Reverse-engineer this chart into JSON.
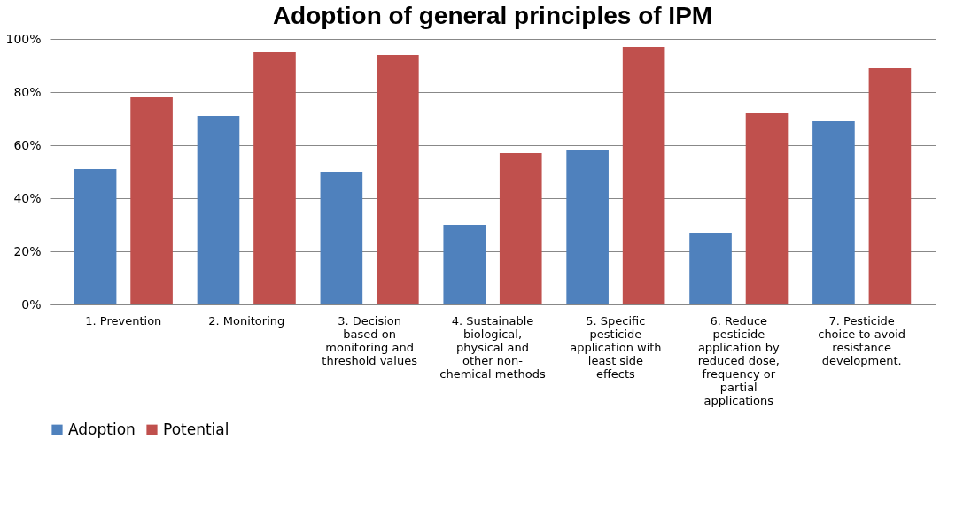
{
  "chart_data": {
    "type": "bar",
    "title": "Adoption of general principles of IPM",
    "categories": [
      "1. Prevention",
      "2. Monitoring",
      "3. Decision based on monitoring and threshold values",
      "4. Sustainable biological, physical and other non-chemical methods",
      "5. Specific pesticide application with least side effects",
      "6. Reduce pesticide application by reduced dose, frequency or partial applications",
      "7. Pesticide choice to avoid resistance development."
    ],
    "series": [
      {
        "name": "Adoption",
        "color": "#4f81bd",
        "values": [
          51,
          71,
          50,
          30,
          58,
          27,
          69
        ]
      },
      {
        "name": "Potential",
        "color": "#c0504d",
        "values": [
          78,
          95,
          94,
          57,
          97,
          72,
          89
        ]
      }
    ],
    "ylim": [
      0,
      100
    ],
    "yticks": [
      {
        "value": 0,
        "label": "0%"
      },
      {
        "value": 20,
        "label": "20%"
      },
      {
        "value": 40,
        "label": "40%"
      },
      {
        "value": 60,
        "label": "60%"
      },
      {
        "value": 80,
        "label": "80%"
      },
      {
        "value": 100,
        "label": "100%"
      }
    ],
    "grid": "y",
    "legend": "bottom"
  }
}
